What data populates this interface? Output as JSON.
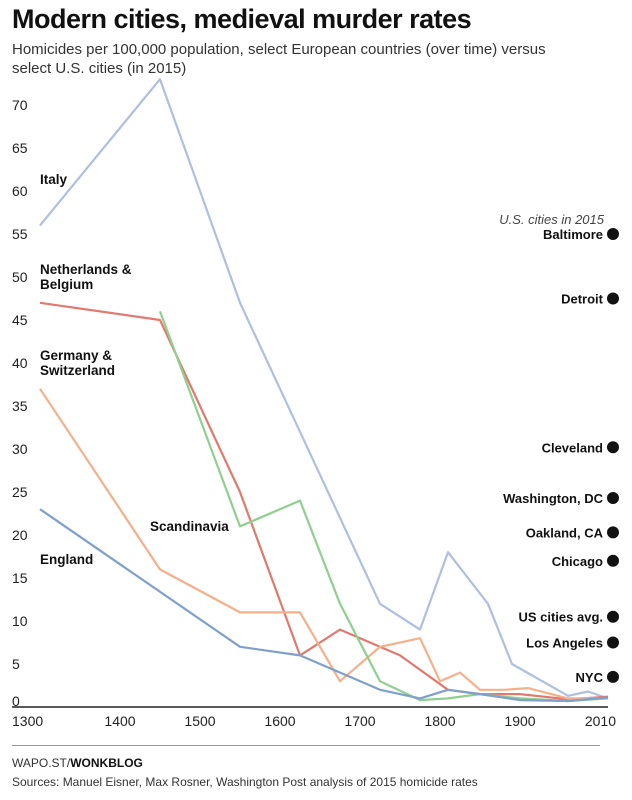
{
  "header": {
    "title": "Modern cities, medieval murder rates",
    "subtitle": "Homicides per 100,000 population, select European countries (over time) versus select U.S. cities (in 2015)"
  },
  "footer": {
    "source_prefix": "WAPO.ST/",
    "source_bold": "WONKBLOG",
    "notes": "Sources: Manuel Eisner, Max Rosner, Washington Post analysis of 2015 homicide rates"
  },
  "chart_data": {
    "type": "line",
    "title": "Modern cities, medieval murder rates",
    "subtitle": "Homicides per 100,000 population, select European countries (over time) versus select U.S. cities (in 2015)",
    "xlabel": "",
    "ylabel": "",
    "xlim": [
      1300,
      2015
    ],
    "ylim": [
      0,
      72
    ],
    "x_ticks": [
      1300,
      1400,
      1500,
      1600,
      1700,
      1800,
      1900,
      2010
    ],
    "y_ticks": [
      0,
      5,
      10,
      15,
      20,
      25,
      30,
      35,
      40,
      45,
      50,
      55,
      60,
      65,
      70
    ],
    "grid": false,
    "legend": "none",
    "series": [
      {
        "name": "Italy",
        "color": "#aebfe0",
        "points": [
          [
            1300,
            56
          ],
          [
            1450,
            73
          ],
          [
            1550,
            47
          ],
          [
            1625,
            32
          ],
          [
            1725,
            12
          ],
          [
            1775,
            9
          ],
          [
            1810,
            18
          ],
          [
            1860,
            12
          ],
          [
            1890,
            5
          ],
          [
            1960,
            1.3
          ],
          [
            1985,
            1.8
          ],
          [
            2010,
            1
          ]
        ]
      },
      {
        "name": "Netherlands & Belgium",
        "color": "#e07a6e",
        "points": [
          [
            1300,
            47
          ],
          [
            1450,
            45
          ],
          [
            1550,
            25
          ],
          [
            1625,
            6
          ],
          [
            1675,
            9
          ],
          [
            1750,
            6
          ],
          [
            1810,
            2
          ],
          [
            1850,
            1.5
          ],
          [
            1900,
            1.5
          ],
          [
            1960,
            0.9
          ],
          [
            2010,
            1.2
          ]
        ]
      },
      {
        "name": "Germany & Switzerland",
        "color": "#f5b08a",
        "points": [
          [
            1300,
            37
          ],
          [
            1450,
            16
          ],
          [
            1550,
            11
          ],
          [
            1625,
            11
          ],
          [
            1675,
            3
          ],
          [
            1725,
            7
          ],
          [
            1775,
            8
          ],
          [
            1800,
            3
          ],
          [
            1825,
            4
          ],
          [
            1850,
            2
          ],
          [
            1880,
            2
          ],
          [
            1910,
            2.2
          ],
          [
            1960,
            1
          ],
          [
            2010,
            1
          ]
        ]
      },
      {
        "name": "Scandinavia",
        "color": "#8fcf8f",
        "points": [
          [
            1450,
            46
          ],
          [
            1550,
            21
          ],
          [
            1625,
            24
          ],
          [
            1675,
            12
          ],
          [
            1725,
            3
          ],
          [
            1775,
            0.8
          ],
          [
            1810,
            1
          ],
          [
            1850,
            1.5
          ],
          [
            1900,
            1
          ],
          [
            1960,
            0.7
          ],
          [
            2010,
            1
          ]
        ]
      },
      {
        "name": "England",
        "color": "#7f9fcc",
        "points": [
          [
            1300,
            23
          ],
          [
            1550,
            7
          ],
          [
            1625,
            6
          ],
          [
            1725,
            2
          ],
          [
            1775,
            1
          ],
          [
            1810,
            2
          ],
          [
            1850,
            1.5
          ],
          [
            1900,
            0.8
          ],
          [
            1960,
            0.7
          ],
          [
            2010,
            1.1
          ]
        ]
      }
    ],
    "cities_note": "U.S. cities in 2015",
    "cities": [
      {
        "name": "Baltimore",
        "value": 55.0
      },
      {
        "name": "Detroit",
        "value": 47.5
      },
      {
        "name": "Cleveland",
        "value": 30.2
      },
      {
        "name": "Washington, DC",
        "value": 24.3
      },
      {
        "name": "Oakland, CA",
        "value": 20.3
      },
      {
        "name": "Chicago",
        "value": 17.0
      },
      {
        "name": "US cities avg.",
        "value": 10.5
      },
      {
        "name": "Los Angeles",
        "value": 7.5
      },
      {
        "name": "NYC",
        "value": 3.5
      }
    ]
  }
}
